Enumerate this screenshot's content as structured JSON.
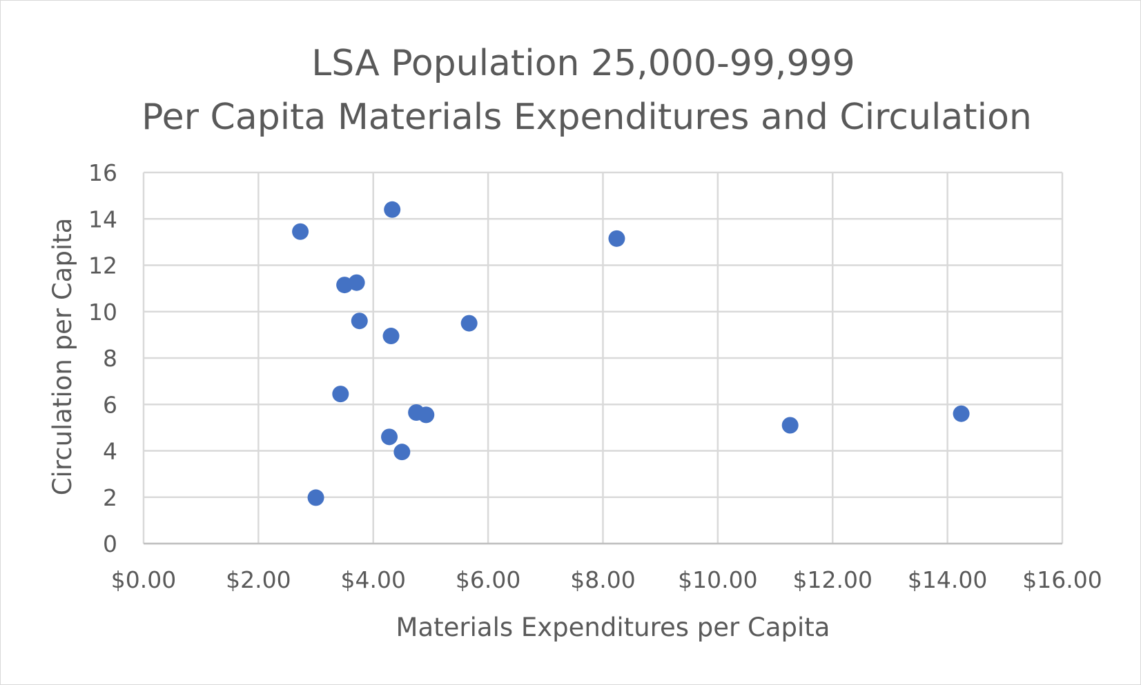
{
  "chart_data": {
    "type": "scatter",
    "title_lines": [
      "LSA Population 25,000-99,999",
      "Per Capita Materials Expenditures and Circulation"
    ],
    "xlabel": "Materials Expenditures per Capita",
    "ylabel": "Circulation per Capita",
    "xlim": [
      0,
      16
    ],
    "ylim": [
      0,
      16
    ],
    "x_ticks": [
      0,
      2,
      4,
      6,
      8,
      10,
      12,
      14,
      16
    ],
    "x_tick_labels": [
      "$0.00",
      "$2.00",
      "$4.00",
      "$6.00",
      "$8.00",
      "$10.00",
      "$12.00",
      "$14.00",
      "$16.00"
    ],
    "y_ticks": [
      0,
      2,
      4,
      6,
      8,
      10,
      12,
      14,
      16
    ],
    "y_tick_labels": [
      "0",
      "2",
      "4",
      "6",
      "8",
      "10",
      "12",
      "14",
      "16"
    ],
    "grid": true,
    "legend": "none",
    "marker_color": "#4472c4",
    "points": [
      {
        "x": 2.73,
        "y": 13.45
      },
      {
        "x": 4.33,
        "y": 14.4
      },
      {
        "x": 8.24,
        "y": 13.15
      },
      {
        "x": 3.5,
        "y": 11.15
      },
      {
        "x": 3.71,
        "y": 11.25
      },
      {
        "x": 3.76,
        "y": 9.6
      },
      {
        "x": 5.67,
        "y": 9.5
      },
      {
        "x": 4.31,
        "y": 8.95
      },
      {
        "x": 3.43,
        "y": 6.45
      },
      {
        "x": 4.75,
        "y": 5.65
      },
      {
        "x": 4.92,
        "y": 5.55
      },
      {
        "x": 11.26,
        "y": 5.1
      },
      {
        "x": 14.24,
        "y": 5.6
      },
      {
        "x": 4.28,
        "y": 4.6
      },
      {
        "x": 4.5,
        "y": 3.95
      },
      {
        "x": 3.0,
        "y": 1.98
      }
    ]
  }
}
